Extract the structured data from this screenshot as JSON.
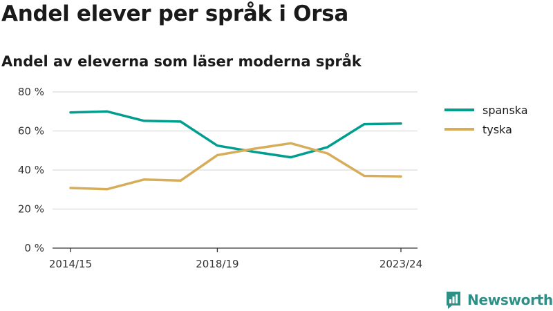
{
  "title": "Andel elever per språk i Orsa",
  "subtitle": "Andel av eleverna som läser moderna språk",
  "brand": {
    "name": "Newsworthy",
    "icon": "newsworthy-logo-icon",
    "color": "#2f8f87"
  },
  "chart_data": {
    "type": "line",
    "title": "Andel elever per språk i Orsa",
    "subtitle": "Andel av eleverna som läser moderna språk",
    "xlabel": "",
    "ylabel": "",
    "categories": [
      "2014/15",
      "2015/16",
      "2016/17",
      "2017/18",
      "2018/19",
      "2019/20",
      "2020/21",
      "2021/22",
      "2022/23",
      "2023/24"
    ],
    "x_tick_labels": [
      "2014/15",
      "2018/19",
      "2023/24"
    ],
    "y_ticks": [
      0,
      20,
      40,
      60,
      80
    ],
    "y_tick_labels": [
      "0 %",
      "20 %",
      "40 %",
      "60 %",
      "80 %"
    ],
    "ylim": [
      0,
      80
    ],
    "grid": true,
    "legend_position": "right",
    "series": [
      {
        "name": "spanska",
        "color": "#009e8e",
        "values": [
          69.5,
          70,
          65.2,
          64.8,
          52.5,
          49.3,
          46.5,
          51.7,
          63.5,
          63.8
        ]
      },
      {
        "name": "tyska",
        "color": "#d8ad5a",
        "values": [
          30.8,
          30.2,
          35.1,
          34.6,
          47.6,
          50.9,
          53.7,
          48.5,
          37,
          36.7
        ]
      }
    ]
  }
}
